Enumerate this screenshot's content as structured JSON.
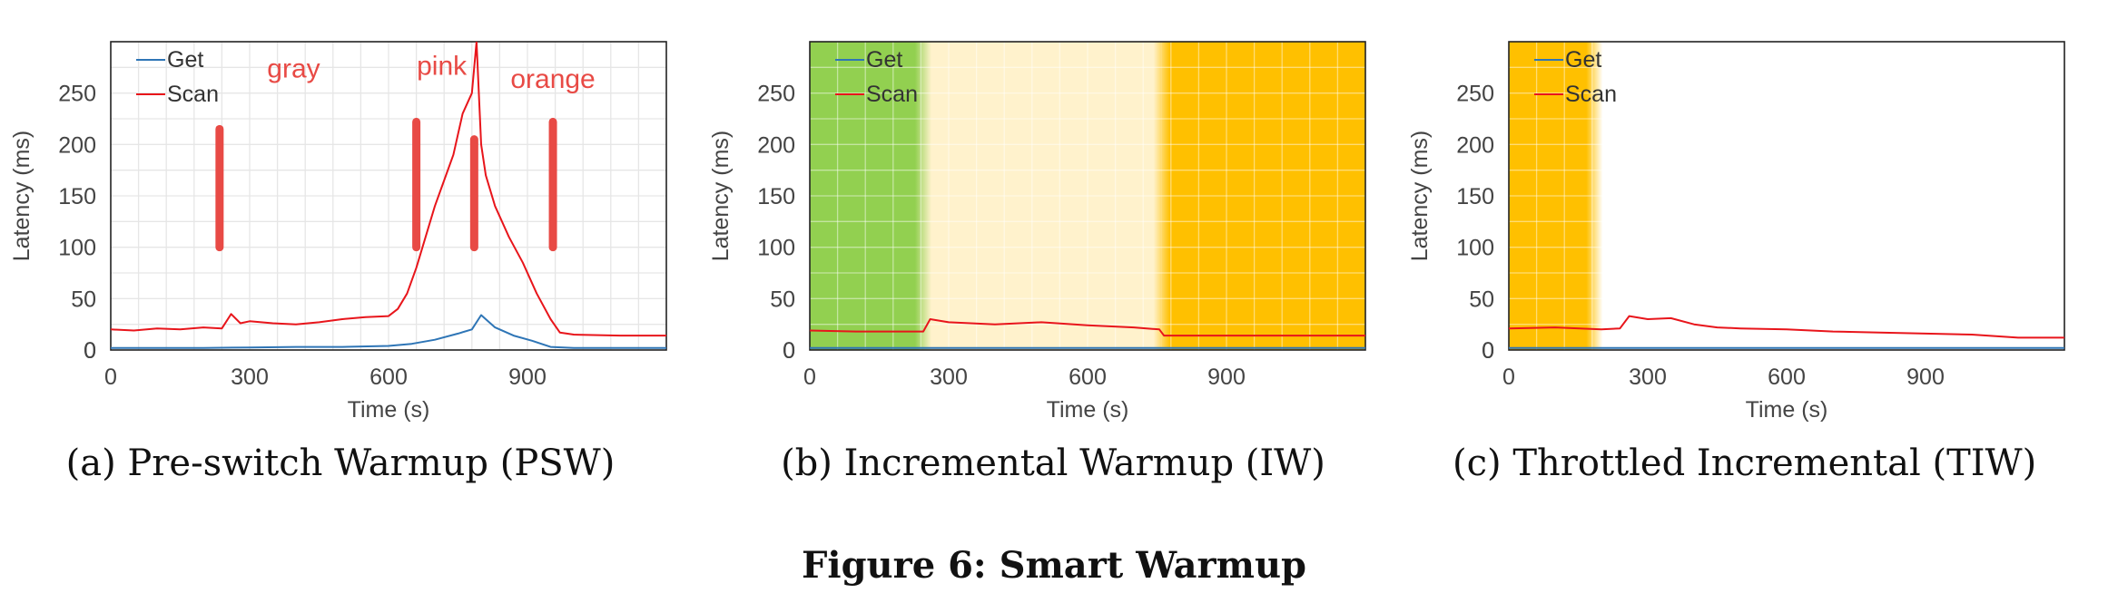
{
  "figure_title": "Figure 6: Smart Warmup",
  "colors": {
    "get": "#2e75b6",
    "scan": "#e8151b",
    "annotation": "#e84a45",
    "green": "#92d050",
    "cream": "#fff2cc",
    "orange": "#ffc000"
  },
  "chart_data": [
    {
      "type": "line",
      "caption": "(a) Pre-switch Warmup (PSW)",
      "xlabel": "Time (s)",
      "ylabel": "Latency (ms)",
      "xlim": [
        0,
        1200
      ],
      "ylim": [
        0,
        300
      ],
      "xticks": [
        0,
        300,
        600,
        900
      ],
      "yticks": [
        0,
        50,
        100,
        150,
        200,
        250
      ],
      "grid": true,
      "legend": "top-left",
      "annotations": [
        {
          "text": "gray",
          "x": 395,
          "y": 265
        },
        {
          "text": "pink",
          "x": 715,
          "y": 268
        },
        {
          "text": "orange",
          "x": 955,
          "y": 255
        }
      ],
      "bars": [
        {
          "x": 235,
          "y0": 100,
          "y1": 215
        },
        {
          "x": 660,
          "y0": 100,
          "y1": 222
        },
        {
          "x": 785,
          "y0": 100,
          "y1": 205
        },
        {
          "x": 955,
          "y0": 100,
          "y1": 222
        }
      ],
      "series": [
        {
          "name": "Get",
          "color": "#2e75b6",
          "x": [
            0,
            100,
            200,
            300,
            400,
            500,
            600,
            650,
            700,
            750,
            780,
            800,
            830,
            870,
            910,
            950,
            1000,
            1200
          ],
          "y": [
            2,
            2,
            2,
            2.5,
            3,
            3,
            4,
            6,
            10,
            16,
            20,
            34,
            22,
            14,
            9,
            3,
            2,
            2
          ]
        },
        {
          "name": "Scan",
          "color": "#e8151b",
          "x": [
            0,
            50,
            100,
            150,
            200,
            240,
            260,
            280,
            300,
            350,
            400,
            450,
            500,
            550,
            600,
            620,
            640,
            660,
            680,
            700,
            720,
            740,
            760,
            780,
            790,
            800,
            810,
            830,
            860,
            890,
            920,
            950,
            970,
            1000,
            1100,
            1200
          ],
          "y": [
            20,
            19,
            21,
            20,
            22,
            21,
            35,
            26,
            28,
            26,
            25,
            27,
            30,
            32,
            33,
            40,
            55,
            80,
            110,
            140,
            165,
            190,
            230,
            250,
            300,
            200,
            170,
            140,
            110,
            85,
            55,
            30,
            17,
            15,
            14,
            14
          ]
        }
      ]
    },
    {
      "type": "line",
      "caption": "(b) Incremental Warmup (IW)",
      "xlabel": "Time (s)",
      "ylabel": "Latency (ms)",
      "xlim": [
        0,
        1200
      ],
      "ylim": [
        0,
        300
      ],
      "xticks": [
        0,
        300,
        600,
        900
      ],
      "yticks": [
        0,
        50,
        100,
        150,
        200,
        250
      ],
      "grid": true,
      "legend": "top-left",
      "regions": [
        {
          "x0": 0,
          "x1": 245,
          "color": "#92d050"
        },
        {
          "x0": 245,
          "x1": 760,
          "color": "#fff2cc"
        },
        {
          "x0": 760,
          "x1": 1200,
          "color": "#ffc000"
        }
      ],
      "series": [
        {
          "name": "Get",
          "color": "#2e75b6",
          "x": [
            0,
            300,
            600,
            900,
            1200
          ],
          "y": [
            2,
            2,
            2,
            2,
            2
          ]
        },
        {
          "name": "Scan",
          "color": "#e8151b",
          "x": [
            0,
            100,
            200,
            245,
            260,
            300,
            400,
            500,
            600,
            700,
            755,
            765,
            900,
            1000,
            1100,
            1200
          ],
          "y": [
            19,
            18,
            18,
            18,
            30,
            27,
            25,
            27,
            24,
            22,
            20,
            14,
            14,
            14,
            14,
            14
          ]
        }
      ]
    },
    {
      "type": "line",
      "caption": "(c) Throttled Incremental (TIW)",
      "xlabel": "Time (s)",
      "ylabel": "Latency (ms)",
      "xlim": [
        0,
        1200
      ],
      "ylim": [
        0,
        300
      ],
      "xticks": [
        0,
        300,
        600,
        900
      ],
      "yticks": [
        0,
        50,
        100,
        150,
        200,
        250
      ],
      "grid": true,
      "legend": "top-left",
      "regions": [
        {
          "x0": 0,
          "x1": 185,
          "color": "#ffc000"
        }
      ],
      "series": [
        {
          "name": "Get",
          "color": "#2e75b6",
          "x": [
            0,
            300,
            600,
            900,
            1200
          ],
          "y": [
            2,
            2,
            2,
            2,
            2
          ]
        },
        {
          "name": "Scan",
          "color": "#e8151b",
          "x": [
            0,
            100,
            200,
            240,
            260,
            300,
            350,
            400,
            450,
            500,
            600,
            700,
            800,
            900,
            1000,
            1100,
            1200
          ],
          "y": [
            21,
            22,
            20,
            21,
            33,
            30,
            31,
            25,
            22,
            21,
            20,
            18,
            17,
            16,
            15,
            12,
            12
          ]
        }
      ]
    }
  ]
}
